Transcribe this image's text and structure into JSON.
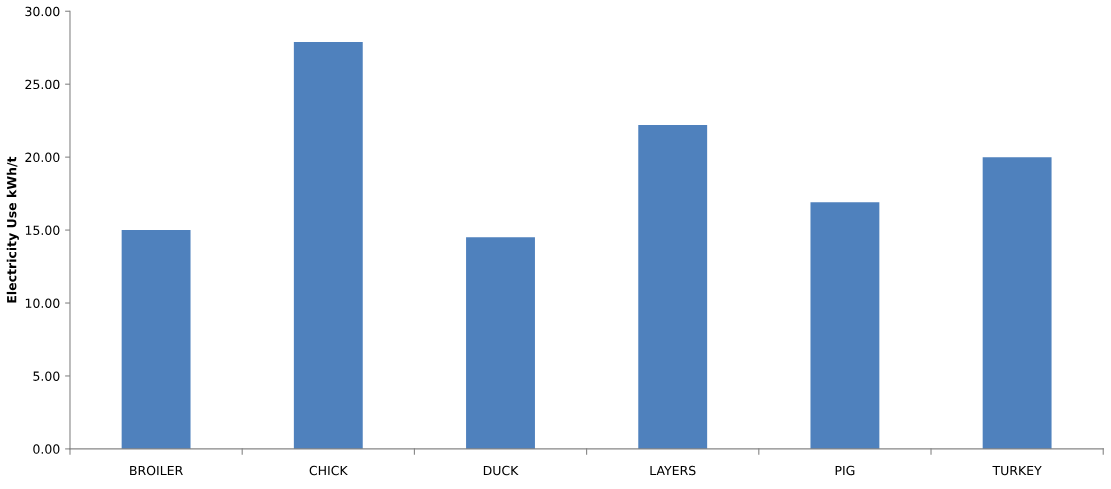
{
  "chart_data": {
    "type": "bar",
    "ylabel": "Electricity Use kWh/t",
    "categories": [
      "BROILER",
      "CHICK",
      "DUCK",
      "LAYERS",
      "PIG",
      "TURKEY"
    ],
    "values": [
      15.0,
      27.9,
      14.5,
      22.2,
      16.9,
      20.0
    ],
    "color": "#4f81bd",
    "ylim": [
      0,
      30
    ],
    "yticks": [
      {
        "value": 0,
        "label": "0.00"
      },
      {
        "value": 5,
        "label": "5.00"
      },
      {
        "value": 10,
        "label": "10.00"
      },
      {
        "value": 15,
        "label": "15.00"
      },
      {
        "value": 20,
        "label": "20.00"
      },
      {
        "value": 25,
        "label": "25.00"
      },
      {
        "value": 30,
        "label": "30.00"
      }
    ],
    "grid": false,
    "legend": false
  }
}
